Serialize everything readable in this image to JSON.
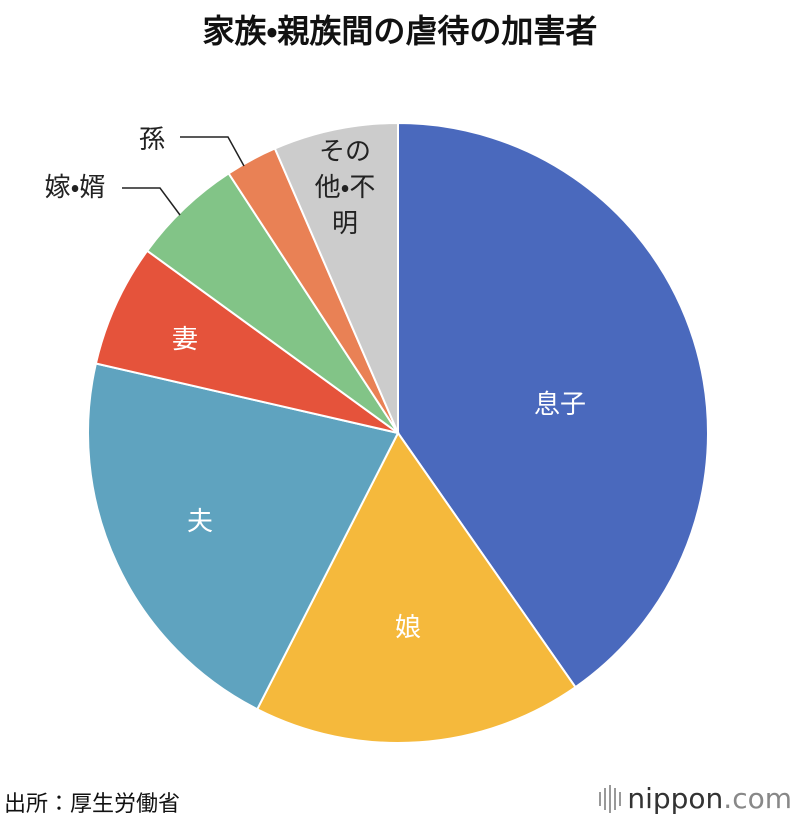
{
  "chart_data": {
    "type": "pie",
    "title": "家族・親族間の虐待の加害者",
    "categories": [
      "息子",
      "娘",
      "夫",
      "妻",
      "嫁・婿",
      "孫",
      "その他・不明"
    ],
    "values": [
      40.3,
      17.2,
      21.1,
      6.4,
      5.8,
      2.7,
      6.5
    ],
    "colors": [
      "#4a69bd",
      "#f5b93c",
      "#5fa3bf",
      "#e5533b",
      "#82c487",
      "#e98155",
      "#cccccc"
    ],
    "start_angle": 0,
    "direction": "clockwise"
  },
  "source": "出所：厚生労働省",
  "logo": {
    "name": "nippon",
    "domain": ".com"
  }
}
